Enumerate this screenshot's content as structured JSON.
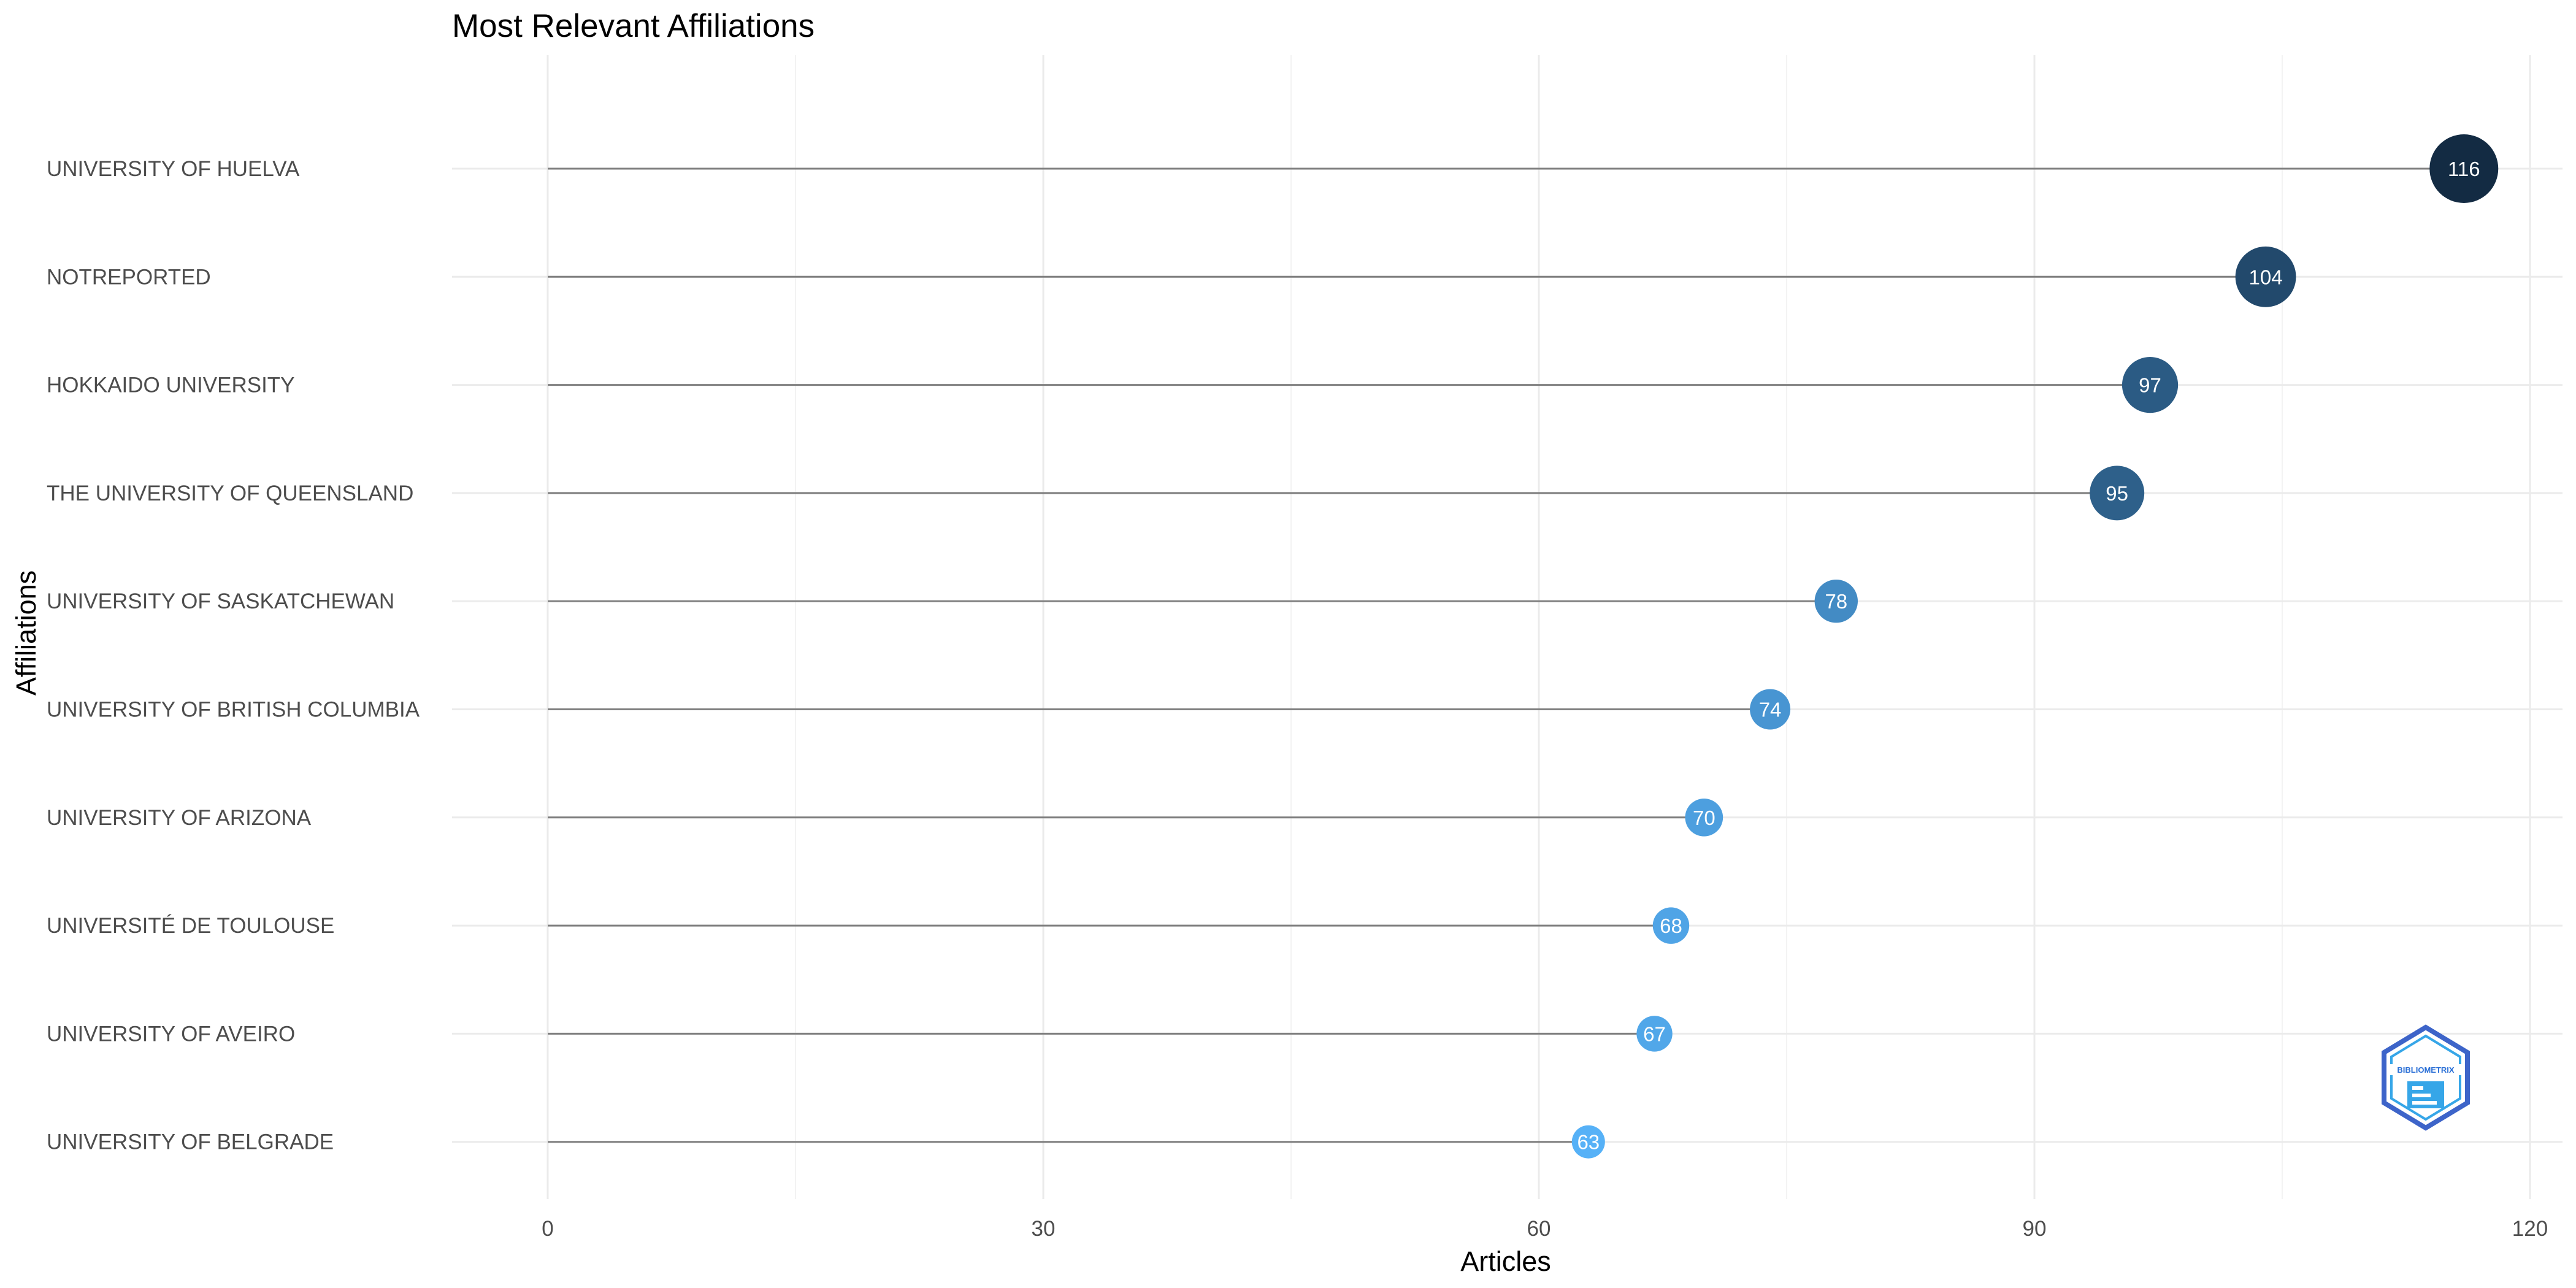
{
  "chart_data": {
    "type": "lollipop",
    "title": "Most Relevant Affiliations",
    "xlabel": "Articles",
    "ylabel": "Affiliations",
    "xlim": [
      0,
      120
    ],
    "xticks": [
      0,
      30,
      60,
      90,
      120
    ],
    "grid": true,
    "categories": [
      "UNIVERSITY OF HUELVA",
      "NOTREPORTED",
      "HOKKAIDO UNIVERSITY",
      "THE UNIVERSITY OF QUEENSLAND",
      "UNIVERSITY OF SASKATCHEWAN",
      "UNIVERSITY OF BRITISH COLUMBIA",
      "UNIVERSITY OF ARIZONA",
      "UNIVERSITÉ DE TOULOUSE",
      "UNIVERSITY OF AVEIRO",
      "UNIVERSITY OF BELGRADE"
    ],
    "values": [
      116,
      104,
      97,
      95,
      78,
      74,
      70,
      68,
      67,
      63
    ],
    "colors": {
      "low": "#56B1F7",
      "high": "#132B43",
      "stem": "#808080",
      "grid_major": "#ebebeb",
      "grid_minor": "#f3f3f3"
    }
  },
  "logo": {
    "text": "BIBLIOMETRIX"
  }
}
